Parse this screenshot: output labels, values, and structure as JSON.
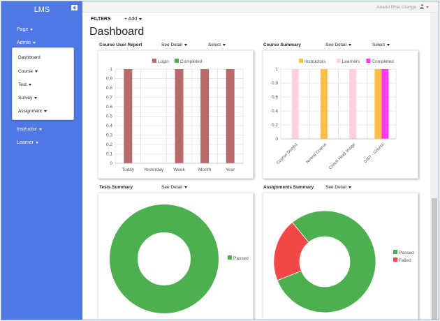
{
  "sidebar": {
    "brand": "LMS",
    "items": [
      {
        "label": "Page",
        "name": "sidebar-item-page"
      },
      {
        "label": "Admin",
        "name": "sidebar-item-admin"
      },
      {
        "label": "Instructor",
        "name": "sidebar-item-instructor"
      },
      {
        "label": "Learner",
        "name": "sidebar-item-learner"
      }
    ],
    "admin_submenu": [
      {
        "label": "Dashboard",
        "caret": false
      },
      {
        "label": "Course",
        "caret": true
      },
      {
        "label": "Test",
        "caret": true
      },
      {
        "label": "Survey",
        "caret": true
      },
      {
        "label": "Assignment",
        "caret": true
      }
    ]
  },
  "topbar": {
    "user_name": "Anand Bhai change"
  },
  "toolbar": {
    "filters": "FILTERS",
    "add": "+ Add"
  },
  "page_title": "Dashboard",
  "cards": {
    "course_user_report": {
      "title": "Course User Report",
      "see_detail": "See Detail",
      "select": "Select"
    },
    "course_summary": {
      "title": "Course Summary",
      "see_detail": "See Detail",
      "select": "Select"
    },
    "tests_summary": {
      "title": "Tests Summary",
      "see_detail": "See Detail"
    },
    "assignments_summary": {
      "title": "Assignments Summary",
      "see_detail": "See Detail"
    }
  },
  "colors": {
    "sidebar": "#4f78e4",
    "login": "#b96a6a",
    "completed_green": "#4caf50",
    "instructors": "#ffbd4a",
    "learners": "#ffd1dc",
    "completed_magenta": "#ff3cf0",
    "failed": "#f44848"
  },
  "chart_data": [
    {
      "type": "bar",
      "categories": [
        "Today",
        "Yesterday",
        "Week",
        "Month",
        "Year"
      ],
      "series": [
        {
          "name": "Login",
          "values": [
            1,
            0,
            1,
            1,
            1
          ]
        },
        {
          "name": "Completed",
          "values": [
            0,
            0,
            0,
            0,
            0
          ]
        }
      ],
      "ylim": [
        0,
        1
      ],
      "yticks": [
        0,
        0.1,
        0.2,
        0.3,
        0.4,
        0.5,
        0.6,
        0.7,
        0.8,
        0.9,
        1
      ],
      "ytick_labels": [
        "0",
        "0.1",
        "0.2",
        "0.3",
        "0.4",
        "0.5",
        "0.6",
        "0.7",
        "0.8",
        "0.9",
        "1"
      ],
      "grid": true,
      "legend": "top"
    },
    {
      "type": "bar",
      "categories": [
        "Course Demo1",
        "Neeral Course",
        "Check Hindi Image",
        "0407 - Course"
      ],
      "series": [
        {
          "name": "Instructors",
          "values": [
            0,
            1,
            0,
            1
          ]
        },
        {
          "name": "Learners",
          "values": [
            1,
            0,
            1,
            0
          ]
        },
        {
          "name": "Completed",
          "values": [
            0,
            0,
            0,
            1
          ]
        }
      ],
      "ylim": [
        0,
        1
      ],
      "yticks": [
        0,
        0.2,
        0.4,
        0.6,
        0.8,
        1
      ],
      "ytick_labels": [
        "0",
        "0.2",
        "0.4",
        "0.6",
        "0.8",
        "1"
      ],
      "grid": true,
      "legend": "top"
    },
    {
      "type": "pie",
      "donut": true,
      "slices": [
        {
          "label": "Passed",
          "value": 100
        }
      ],
      "legend": "right"
    },
    {
      "type": "pie",
      "donut": true,
      "slices": [
        {
          "label": "Passed",
          "value": 80
        },
        {
          "label": "Failed",
          "value": 20
        }
      ],
      "legend": "right"
    }
  ]
}
